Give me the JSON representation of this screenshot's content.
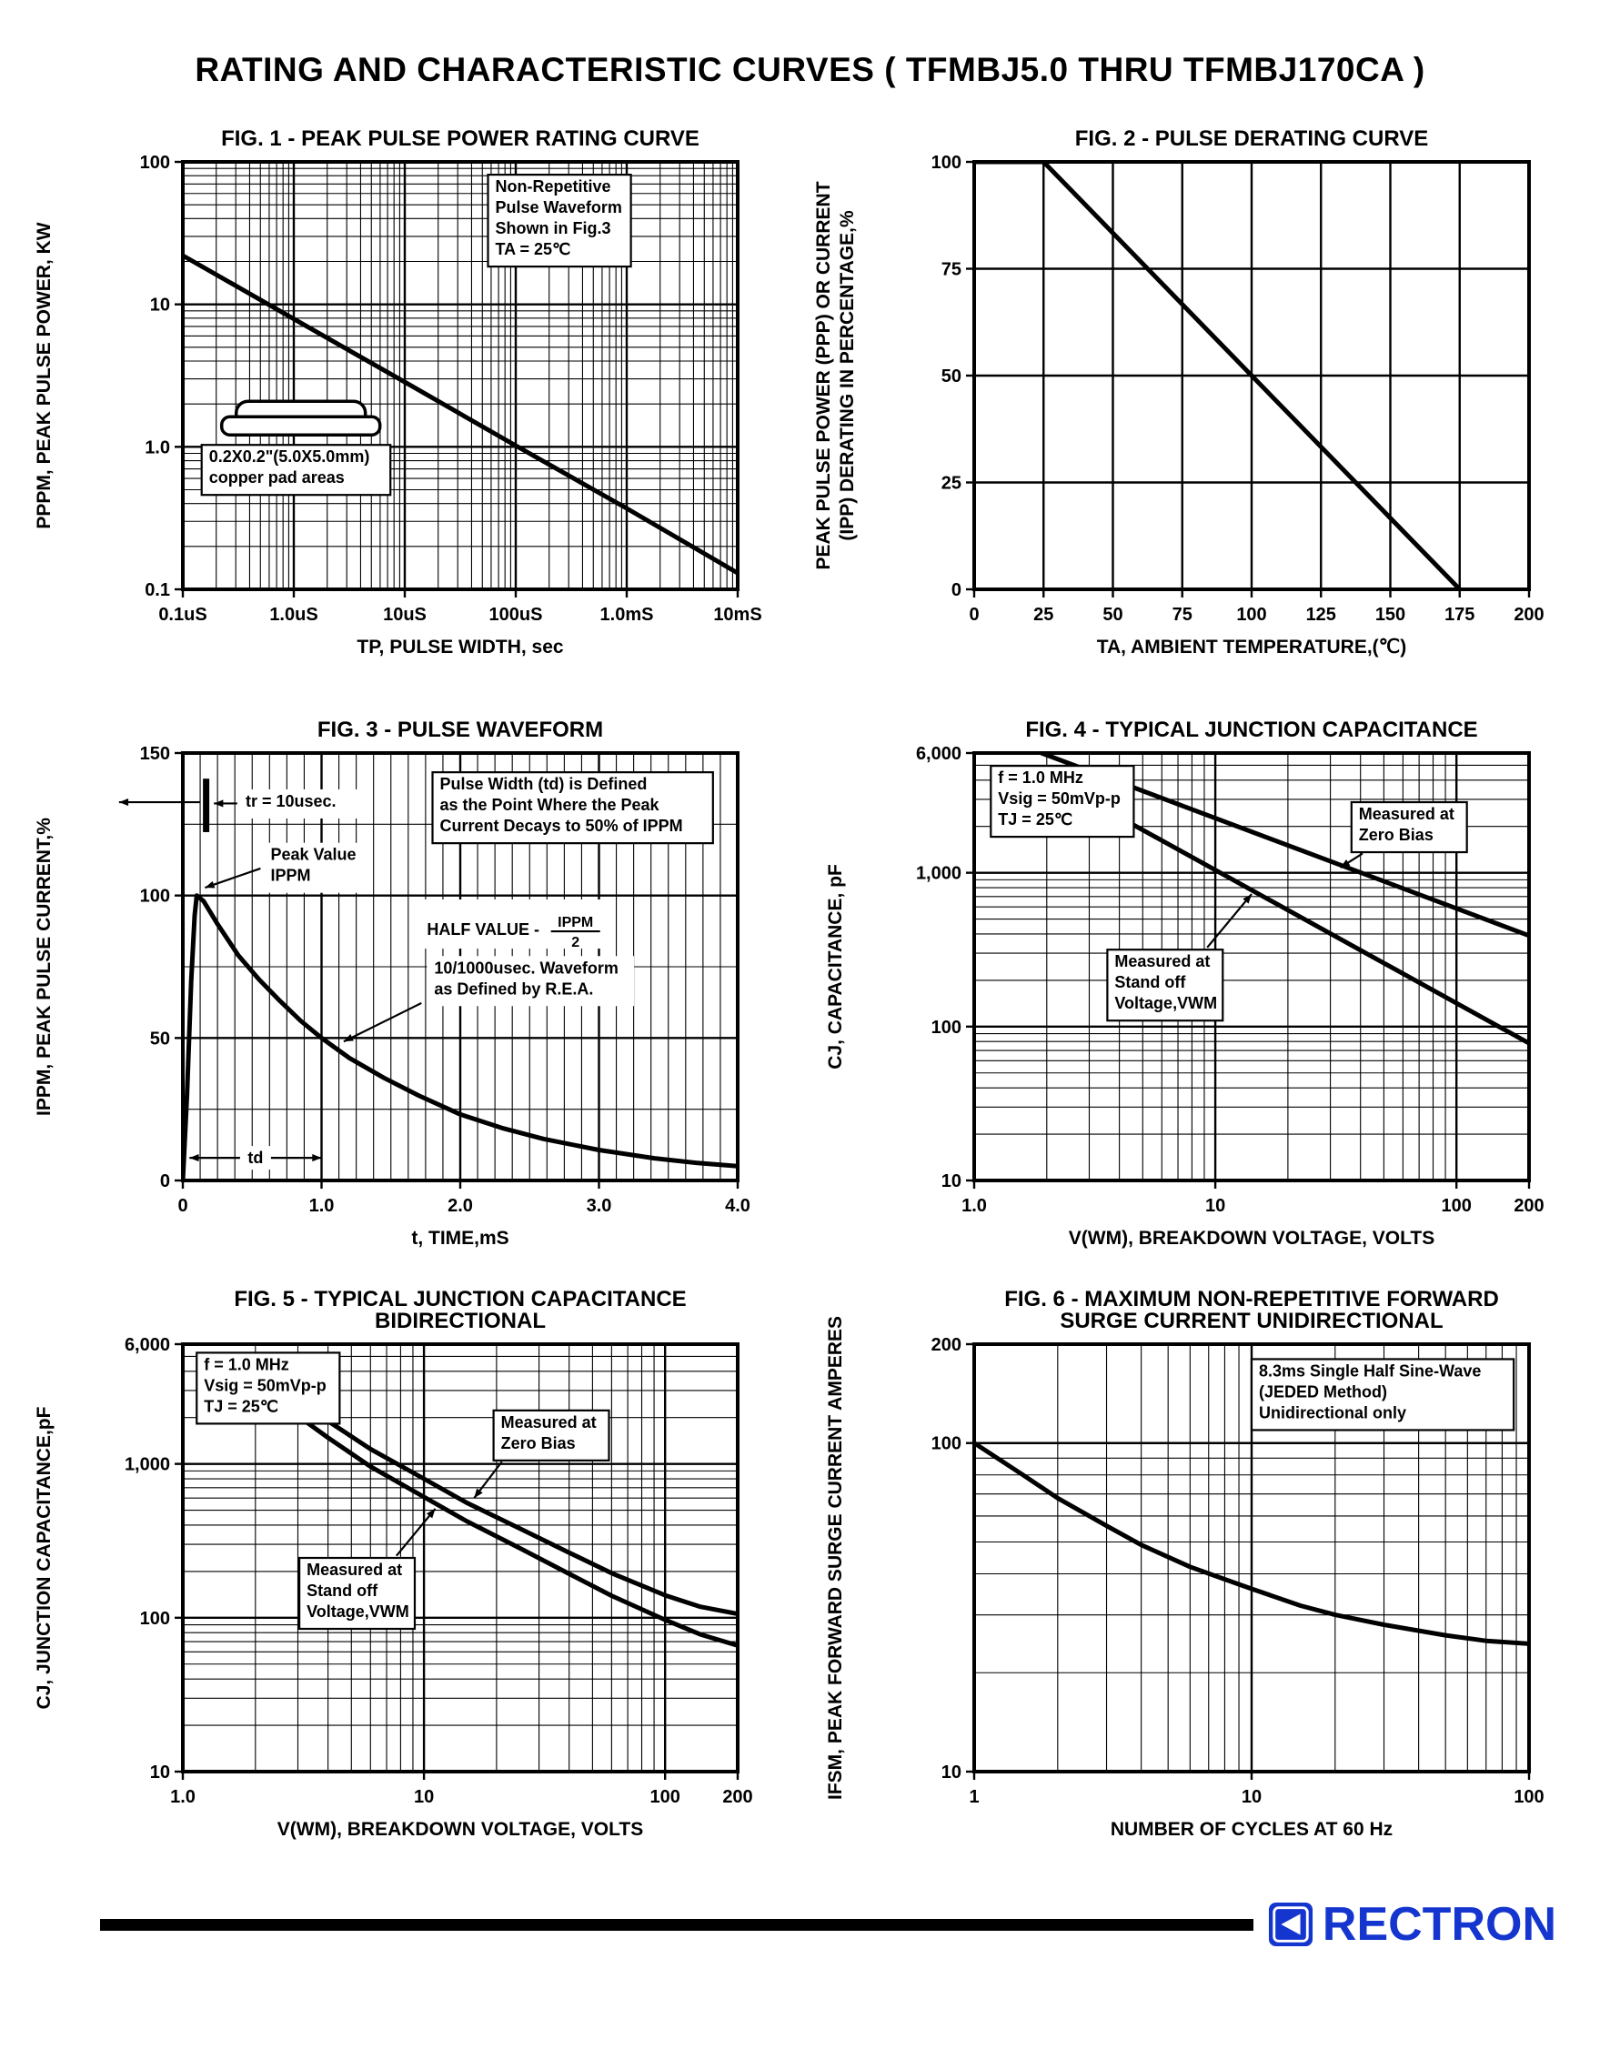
{
  "page": {
    "title": "RATING AND CHARACTERISTIC CURVES ( TFMBJ5.0 THRU TFMBJ170CA )",
    "ink_color": "#000000",
    "background_color": "#ffffff"
  },
  "footer": {
    "brand": "RECTRON",
    "brand_color": "#1535cf"
  },
  "chart_data": [
    {
      "name": "fig1-peak-pulse-power-rating",
      "type": "line",
      "title_lines": [
        "FIG. 1 - PEAK PULSE POWER RATING CURVE"
      ],
      "xlabel": "TP, PULSE WIDTH, sec",
      "ylabel_lines": [
        "PPPM, PEAK PULSE POWER, KW"
      ],
      "x_axis": {
        "scale": "log",
        "min": 1e-07,
        "max": 0.01,
        "ticks": [
          {
            "v": 1e-07,
            "t": "0.1uS"
          },
          {
            "v": 1e-06,
            "t": "1.0uS"
          },
          {
            "v": 1e-05,
            "t": "10uS"
          },
          {
            "v": 0.0001,
            "t": "100uS"
          },
          {
            "v": 0.001,
            "t": "1.0mS"
          },
          {
            "v": 0.01,
            "t": "10mS"
          }
        ]
      },
      "y_axis": {
        "scale": "log",
        "min": 0.1,
        "max": 100,
        "ticks": [
          {
            "v": 0.1,
            "t": "0.1"
          },
          {
            "v": 1,
            "t": "1.0"
          },
          {
            "v": 10,
            "t": "10"
          },
          {
            "v": 100,
            "t": "100"
          }
        ]
      },
      "grid": true,
      "series": [
        {
          "name": "peak-pulse-power-kw",
          "points": [
            [
              1e-07,
              22
            ],
            [
              1e-06,
              7.9
            ],
            [
              1e-05,
              2.85
            ],
            [
              0.0001,
              1.02
            ],
            [
              0.001,
              0.37
            ],
            [
              0.01,
              0.13
            ]
          ]
        }
      ],
      "annotations": [
        {
          "kind": "box",
          "fx": 0.55,
          "fy": 0.03,
          "border": true,
          "lines": [
            "Non-Repetitive",
            "Pulse Waveform",
            "Shown in Fig.3",
            "TA = 25℃"
          ]
        },
        {
          "kind": "package",
          "fx": 0.07,
          "fy": 0.56,
          "lines": [
            "0.2X0.2\"(5.0X5.0mm)",
            "copper pad areas"
          ]
        }
      ]
    },
    {
      "name": "fig2-pulse-derating",
      "type": "line",
      "title_lines": [
        "FIG. 2 - PULSE DERATING CURVE"
      ],
      "xlabel": "TA, AMBIENT TEMPERATURE,(℃)",
      "ylabel_lines": [
        "PEAK PULSE POWER (PPP) OR CURRENT",
        "(IPP) DERATING IN PERCENTAGE,%"
      ],
      "x_axis": {
        "scale": "linear",
        "min": 0,
        "max": 200,
        "minor": 25,
        "ticks": [
          {
            "v": 0,
            "t": "0"
          },
          {
            "v": 25,
            "t": "25"
          },
          {
            "v": 50,
            "t": "50"
          },
          {
            "v": 75,
            "t": "75"
          },
          {
            "v": 100,
            "t": "100"
          },
          {
            "v": 125,
            "t": "125"
          },
          {
            "v": 150,
            "t": "150"
          },
          {
            "v": 175,
            "t": "175"
          },
          {
            "v": 200,
            "t": "200"
          }
        ]
      },
      "y_axis": {
        "scale": "linear",
        "min": 0,
        "max": 100,
        "minor": 25,
        "ticks": [
          {
            "v": 0,
            "t": "0"
          },
          {
            "v": 25,
            "t": "25"
          },
          {
            "v": 50,
            "t": "50"
          },
          {
            "v": 75,
            "t": "75"
          },
          {
            "v": 100,
            "t": "100"
          }
        ]
      },
      "grid": true,
      "series": [
        {
          "name": "derating-percent",
          "points": [
            [
              0,
              100
            ],
            [
              25,
              100
            ],
            [
              175,
              0
            ]
          ]
        }
      ],
      "annotations": []
    },
    {
      "name": "fig3-pulse-waveform",
      "type": "line",
      "title_lines": [
        "FIG. 3 - PULSE WAVEFORM"
      ],
      "xlabel": "t, TIME,mS",
      "ylabel_lines": [
        "IPPM, PEAK PULSE CURRENT,%"
      ],
      "x_axis": {
        "scale": "linear",
        "min": 0,
        "max": 4,
        "minor": 0.125,
        "ticks": [
          {
            "v": 0,
            "t": "0"
          },
          {
            "v": 1,
            "t": "1.0"
          },
          {
            "v": 2,
            "t": "2.0"
          },
          {
            "v": 3,
            "t": "3.0"
          },
          {
            "v": 4,
            "t": "4.0"
          }
        ]
      },
      "y_axis": {
        "scale": "linear",
        "min": 0,
        "max": 150,
        "minor": 25,
        "ticks": [
          {
            "v": 0,
            "t": "0"
          },
          {
            "v": 50,
            "t": "50"
          },
          {
            "v": 100,
            "t": "100"
          },
          {
            "v": 150,
            "t": "150"
          }
        ]
      },
      "grid": true,
      "series": [
        {
          "name": "pulse-current-percent",
          "points": [
            [
              0,
              0
            ],
            [
              0.03,
              30
            ],
            [
              0.06,
              70
            ],
            [
              0.085,
              93
            ],
            [
              0.1,
              100
            ],
            [
              0.15,
              98
            ],
            [
              0.25,
              90
            ],
            [
              0.4,
              79
            ],
            [
              0.55,
              70.5
            ],
            [
              0.7,
              63
            ],
            [
              0.85,
              56
            ],
            [
              1.0,
              50
            ],
            [
              1.2,
              43
            ],
            [
              1.45,
              36
            ],
            [
              1.7,
              29.8
            ],
            [
              2.0,
              23.2
            ],
            [
              2.3,
              18.4
            ],
            [
              2.6,
              14.6
            ],
            [
              3.0,
              10.7
            ],
            [
              3.4,
              7.8
            ],
            [
              3.7,
              6.2
            ],
            [
              4.0,
              5.0
            ]
          ]
        }
      ],
      "annotations": [
        {
          "kind": "vbar",
          "fx": 0.042,
          "fy1": 0.06,
          "fy2": 0.185
        },
        {
          "kind": "arrow",
          "pts": [
            0.032,
            0.115,
            -0.115,
            0.115
          ]
        },
        {
          "kind": "label",
          "fx": 0.1,
          "fy": 0.085,
          "lines": [
            "tr = 10usec."
          ],
          "arrow": [
            0.098,
            0.118,
            0.056,
            0.118
          ]
        },
        {
          "kind": "label",
          "fx": 0.145,
          "fy": 0.21,
          "lines": [
            "Peak Value",
            "IPPM"
          ],
          "arrow": [
            0.14,
            0.27,
            0.04,
            0.315
          ]
        },
        {
          "kind": "box",
          "fx": 0.45,
          "fy": 0.045,
          "border": true,
          "lines": [
            "Pulse Width (td) is Defined",
            "as the Point Where the Peak",
            "Current Decays to 50% of IPPM"
          ]
        },
        {
          "kind": "fraction",
          "fx": 0.44,
          "fy": 0.415,
          "pre": "HALF VALUE - ",
          "num": "IPPM",
          "den": "2"
        },
        {
          "kind": "label",
          "fx": 0.44,
          "fy": 0.475,
          "lines": [
            "10/1000usec. Waveform",
            "as Defined by R.E.A."
          ],
          "arrow": [
            0.43,
            0.585,
            0.29,
            0.675
          ]
        },
        {
          "kind": "harrow",
          "fx1": 0.012,
          "fx2": 0.25,
          "fy": 0.947,
          "label": "td"
        }
      ]
    },
    {
      "name": "fig4-typical-junction-capacitance",
      "type": "line",
      "title_lines": [
        "FIG. 4 - TYPICAL JUNCTION CAPACITANCE"
      ],
      "xlabel": "V(WM), BREAKDOWN VOLTAGE, VOLTS",
      "ylabel_lines": [
        "CJ, CAPACITANCE, pF"
      ],
      "x_axis": {
        "scale": "log",
        "min": 1,
        "max": 200,
        "ticks": [
          {
            "v": 1,
            "t": "1.0"
          },
          {
            "v": 10,
            "t": "10"
          },
          {
            "v": 100,
            "t": "100"
          },
          {
            "v": 200,
            "t": "200"
          }
        ]
      },
      "y_axis": {
        "scale": "log",
        "min": 10,
        "max": 6000,
        "ticks": [
          {
            "v": 10,
            "t": "10"
          },
          {
            "v": 100,
            "t": "100"
          },
          {
            "v": 1000,
            "t": "1,000"
          },
          {
            "v": 6000,
            "t": "6,000"
          }
        ]
      },
      "grid": true,
      "series": [
        {
          "name": "measured-at-zero-bias",
          "points": [
            [
              1.9,
              6000
            ],
            [
              200,
              390
            ]
          ]
        },
        {
          "name": "measured-at-standoff-voltage",
          "points": [
            [
              4,
              2300
            ],
            [
              200,
              78
            ]
          ]
        }
      ],
      "annotations": [
        {
          "kind": "box",
          "fx": 0.03,
          "fy": 0.03,
          "border": true,
          "lines": [
            "f = 1.0 MHz",
            "Vsig = 50mVp-p",
            "TJ = 25℃"
          ]
        },
        {
          "kind": "box",
          "fx": 0.68,
          "fy": 0.115,
          "border": true,
          "lines": [
            "Measured at",
            "Zero Bias"
          ],
          "arrow": [
            0.7,
            0.235,
            0.66,
            0.268
          ]
        },
        {
          "kind": "box",
          "fx": 0.24,
          "fy": 0.46,
          "border": true,
          "lines": [
            "Measured at",
            "Stand off",
            "Voltage,VWM"
          ],
          "arrow": [
            0.42,
            0.455,
            0.5,
            0.33
          ]
        }
      ]
    },
    {
      "name": "fig5-typical-junction-capacitance-bidirectional",
      "type": "line",
      "title_lines": [
        "FIG. 5 - TYPICAL JUNCTION CAPACITANCE",
        "BIDIRECTIONAL"
      ],
      "xlabel": "V(WM), BREAKDOWN VOLTAGE, VOLTS",
      "ylabel_lines": [
        "CJ, JUNCTION CAPACITANCE,pF"
      ],
      "x_axis": {
        "scale": "log",
        "min": 1,
        "max": 200,
        "ticks": [
          {
            "v": 1,
            "t": "1.0"
          },
          {
            "v": 10,
            "t": "10"
          },
          {
            "v": 100,
            "t": "100"
          },
          {
            "v": 200,
            "t": "200"
          }
        ]
      },
      "y_axis": {
        "scale": "log",
        "min": 10,
        "max": 6000,
        "ticks": [
          {
            "v": 10,
            "t": "10"
          },
          {
            "v": 100,
            "t": "100"
          },
          {
            "v": 1000,
            "t": "1,000"
          },
          {
            "v": 6000,
            "t": "6,000"
          }
        ]
      },
      "grid": true,
      "series": [
        {
          "name": "measured-at-zero-bias",
          "points": [
            [
              3,
              2600
            ],
            [
              4,
              1900
            ],
            [
              6,
              1250
            ],
            [
              10,
              800
            ],
            [
              15,
              560
            ],
            [
              25,
              380
            ],
            [
              40,
              265
            ],
            [
              60,
              195
            ],
            [
              100,
              140
            ],
            [
              140,
              118
            ],
            [
              200,
              106
            ]
          ]
        },
        {
          "name": "measured-at-standoff-voltage",
          "points": [
            [
              3,
              2050
            ],
            [
              4,
              1480
            ],
            [
              6,
              960
            ],
            [
              10,
              610
            ],
            [
              15,
              425
            ],
            [
              25,
              283
            ],
            [
              40,
              193
            ],
            [
              60,
              139
            ],
            [
              100,
              97
            ],
            [
              140,
              78
            ],
            [
              200,
              66
            ]
          ]
        }
      ],
      "annotations": [
        {
          "kind": "box",
          "fx": 0.025,
          "fy": 0.02,
          "border": true,
          "lines": [
            "f = 1.0 MHz",
            "Vsig = 50mVp-p",
            "TJ = 25℃"
          ]
        },
        {
          "kind": "box",
          "fx": 0.56,
          "fy": 0.155,
          "border": true,
          "lines": [
            "Measured at",
            "Zero Bias"
          ],
          "arrow": [
            0.575,
            0.275,
            0.525,
            0.36
          ]
        },
        {
          "kind": "box",
          "fx": 0.21,
          "fy": 0.5,
          "border": true,
          "lines": [
            "Measured at",
            "Stand off",
            "Voltage,VWM"
          ],
          "arrow": [
            0.385,
            0.495,
            0.455,
            0.385
          ]
        }
      ]
    },
    {
      "name": "fig6-max-non-repetitive-forward-surge-current",
      "type": "line",
      "title_lines": [
        "FIG. 6 - MAXIMUM NON-REPETITIVE FORWARD",
        "SURGE CURRENT UNIDIRECTIONAL"
      ],
      "xlabel": "NUMBER OF CYCLES AT 60 Hz",
      "ylabel_lines": [
        "IFSM, PEAK FORWARD SURGE CURRENT AMPERES"
      ],
      "x_axis": {
        "scale": "log",
        "min": 1,
        "max": 100,
        "ticks": [
          {
            "v": 1,
            "t": "1"
          },
          {
            "v": 10,
            "t": "10"
          },
          {
            "v": 100,
            "t": "100"
          }
        ]
      },
      "y_axis": {
        "scale": "log",
        "min": 10,
        "max": 200,
        "ticks": [
          {
            "v": 10,
            "t": "10"
          },
          {
            "v": 100,
            "t": "100"
          },
          {
            "v": 200,
            "t": "200"
          }
        ]
      },
      "grid": true,
      "series": [
        {
          "name": "peak-forward-surge-current",
          "points": [
            [
              1,
              100
            ],
            [
              1.5,
              80
            ],
            [
              2,
              68
            ],
            [
              3,
              56
            ],
            [
              4,
              49
            ],
            [
              6,
              42
            ],
            [
              8,
              38.5
            ],
            [
              10,
              36
            ],
            [
              15,
              32
            ],
            [
              20,
              30
            ],
            [
              30,
              28
            ],
            [
              50,
              26
            ],
            [
              70,
              25
            ],
            [
              100,
              24.5
            ]
          ]
        }
      ],
      "annotations": [
        {
          "kind": "box",
          "fx": 0.5,
          "fy": 0.035,
          "border": true,
          "lines": [
            "8.3ms Single Half Sine-Wave",
            "(JEDED Method)",
            "Unidirectional only"
          ]
        }
      ]
    }
  ]
}
